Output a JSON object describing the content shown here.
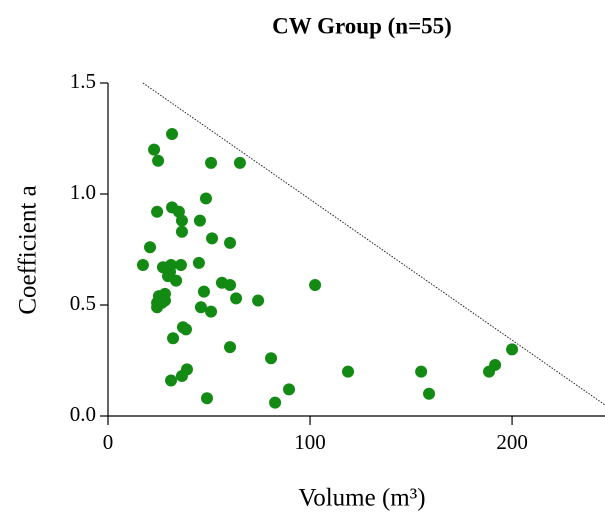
{
  "chart_data": {
    "type": "scatter",
    "title": "CW Group (n=55)",
    "xlabel": "Volume (m³)",
    "ylabel": "Coefficient a",
    "color": "#138a13",
    "x": [
      17.3,
      20.8,
      22.8,
      24.8,
      31.7,
      24.3,
      31.7,
      35.1,
      36.6,
      36.6,
      51.0,
      65.3,
      48.5,
      45.5,
      51.5,
      60.4,
      27.2,
      31.2,
      30.7,
      36.1,
      45.0,
      33.7,
      29.7,
      28.2,
      28.2,
      25.2,
      24.3,
      24.3,
      26.7,
      56.4,
      60.4,
      47.5,
      63.4,
      74.3,
      102.5,
      46.0,
      51.0,
      37.1,
      38.6,
      32.2,
      60.4,
      80.7,
      39.1,
      36.6,
      31.2,
      49.0,
      82.7,
      89.6,
      118.8,
      155.0,
      158.9,
      188.6,
      191.6,
      200.0,
      29.7
    ],
    "values": [
      0.68,
      0.76,
      1.2,
      1.15,
      1.27,
      0.92,
      0.94,
      0.92,
      0.88,
      0.83,
      1.14,
      1.14,
      0.98,
      0.88,
      0.8,
      0.78,
      0.67,
      0.68,
      0.65,
      0.68,
      0.69,
      0.61,
      0.63,
      0.55,
      0.52,
      0.54,
      0.51,
      0.49,
      0.51,
      0.6,
      0.59,
      0.56,
      0.53,
      0.52,
      0.59,
      0.49,
      0.47,
      0.4,
      0.39,
      0.35,
      0.31,
      0.26,
      0.21,
      0.18,
      0.16,
      0.08,
      0.06,
      0.12,
      0.2,
      0.2,
      0.1,
      0.2,
      0.23,
      0.3,
      0.66
    ],
    "reference_line": {
      "x": [
        17.3,
        246
      ],
      "y": [
        1.5,
        0.05
      ],
      "color": "#222222"
    },
    "xlim": [
      0,
      246
    ],
    "xticks": [
      0,
      100,
      200
    ],
    "ylim": [
      0,
      1.5
    ],
    "yticks": [
      {
        "value": 0,
        "label": "0.0"
      },
      0.5,
      {
        "value": 1,
        "label": "1.0"
      },
      1.5
    ]
  }
}
